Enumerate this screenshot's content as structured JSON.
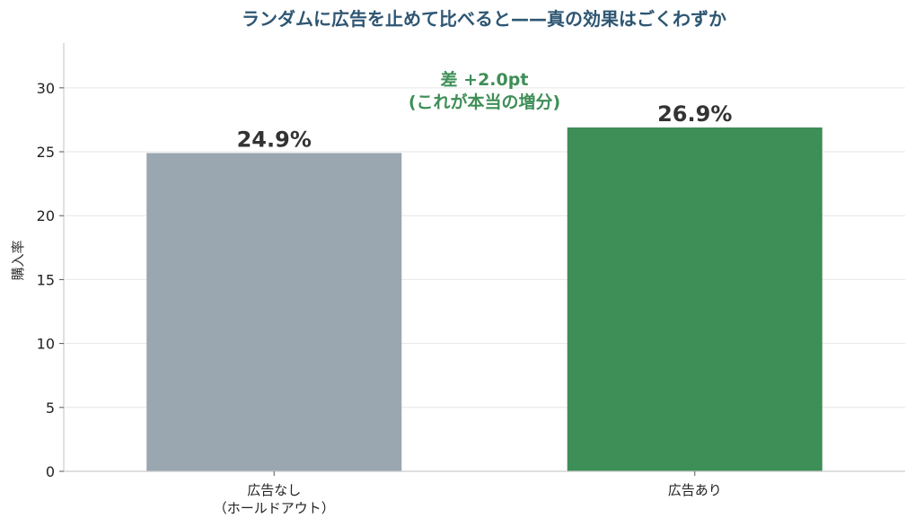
{
  "chart_data": {
    "type": "bar",
    "title": "ランダムに広告を止めて比べると——真の効果はごくわずか",
    "ylabel": "購入率",
    "ylim": [
      0,
      33.5
    ],
    "yticks": [
      0,
      5,
      10,
      15,
      20,
      25,
      30
    ],
    "grid": true,
    "categories": [
      [
        "広告なし",
        "（ホールドアウト）"
      ],
      [
        "広告あり"
      ]
    ],
    "values": [
      24.9,
      26.9
    ],
    "value_labels": [
      "24.9%",
      "26.9%"
    ],
    "colors": [
      "#9aa6b0",
      "#3e8e57"
    ],
    "annotation": {
      "lines": [
        "差 +2.0pt",
        "(これが本当の増分)"
      ],
      "color": "#3e8e57"
    }
  }
}
